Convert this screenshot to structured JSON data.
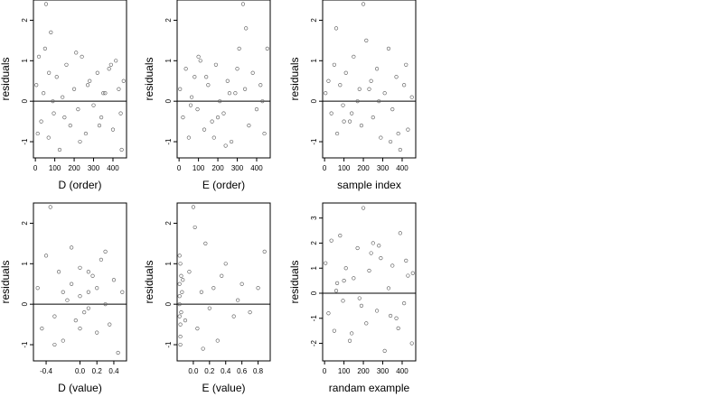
{
  "chart_data": [
    {
      "type": "scatter",
      "xlabel": "D (order)",
      "ylabel": "residuals",
      "xlim": [
        -10,
        470
      ],
      "ylim": [
        -1.4,
        2.5
      ],
      "xticks": [
        0,
        100,
        200,
        300,
        400
      ],
      "xtick_labels": [
        "0",
        "100",
        "200",
        "300",
        "400"
      ],
      "yticks": [
        -1,
        0,
        1,
        2
      ],
      "ytick_labels": [
        "-1",
        "0",
        "1",
        "2"
      ],
      "hline": 0,
      "grid": false,
      "points": {
        "x": [
          5,
          18,
          30,
          42,
          55,
          68,
          80,
          95,
          110,
          125,
          140,
          160,
          180,
          200,
          220,
          240,
          260,
          280,
          300,
          320,
          340,
          360,
          380,
          400,
          415,
          430,
          445,
          455,
          12,
          50,
          90,
          150,
          210,
          270,
          330,
          390,
          440,
          70,
          230,
          350
        ],
        "y": [
          0.4,
          1.1,
          -0.5,
          0.2,
          2.4,
          -0.9,
          1.7,
          -0.3,
          0.6,
          -1.2,
          0.1,
          0.9,
          -0.6,
          0.3,
          -0.2,
          1.1,
          -0.8,
          0.5,
          -0.1,
          0.7,
          -0.4,
          0.2,
          0.8,
          -0.7,
          1.0,
          0.3,
          -1.2,
          0.5,
          -0.8,
          1.3,
          0.0,
          -0.4,
          1.2,
          0.4,
          -0.6,
          0.9,
          -0.3,
          0.7,
          -1.0,
          0.2
        ]
      }
    },
    {
      "type": "scatter",
      "xlabel": "E (order)",
      "ylabel": "residuals",
      "xlim": [
        -10,
        470
      ],
      "ylim": [
        -1.4,
        2.5
      ],
      "xticks": [
        0,
        100,
        200,
        300,
        400
      ],
      "xtick_labels": [
        "0",
        "100",
        "200",
        "300",
        "400"
      ],
      "yticks": [
        -1,
        0,
        1,
        2
      ],
      "ytick_labels": [
        "-1",
        "0",
        "1",
        "2"
      ],
      "hline": 0,
      "grid": false,
      "points": {
        "x": [
          5,
          20,
          35,
          50,
          65,
          80,
          95,
          110,
          130,
          150,
          170,
          190,
          210,
          230,
          250,
          270,
          290,
          310,
          330,
          345,
          360,
          380,
          400,
          420,
          440,
          455,
          60,
          140,
          240,
          340,
          430,
          100,
          200,
          300,
          260,
          180
        ],
        "y": [
          0.3,
          -0.4,
          0.8,
          -0.9,
          0.1,
          0.6,
          -0.2,
          1.0,
          -0.7,
          0.4,
          -0.5,
          0.9,
          0.0,
          -0.3,
          0.5,
          -1.0,
          0.2,
          1.3,
          2.4,
          1.8,
          -0.6,
          0.7,
          -0.2,
          0.4,
          -0.8,
          1.3,
          -0.1,
          0.6,
          -1.1,
          0.3,
          0.0,
          1.1,
          -0.4,
          0.8,
          0.2,
          -0.9
        ]
      }
    },
    {
      "type": "scatter",
      "xlabel": "sample index",
      "ylabel": "residuals",
      "xlim": [
        -10,
        470
      ],
      "ylim": [
        -1.4,
        2.5
      ],
      "xticks": [
        0,
        100,
        200,
        300,
        400
      ],
      "xtick_labels": [
        "0",
        "100",
        "200",
        "300",
        "400"
      ],
      "yticks": [
        -1,
        0,
        1,
        2
      ],
      "ytick_labels": [
        "-1",
        "0",
        "1",
        "2"
      ],
      "hline": 0,
      "grid": false,
      "points": {
        "x": [
          5,
          20,
          35,
          50,
          65,
          80,
          95,
          110,
          130,
          150,
          170,
          190,
          200,
          215,
          230,
          250,
          270,
          290,
          310,
          330,
          350,
          370,
          390,
          410,
          430,
          450,
          60,
          140,
          240,
          340,
          420,
          100,
          180,
          280,
          380
        ],
        "y": [
          0.2,
          0.5,
          -0.3,
          0.9,
          -0.8,
          0.4,
          -0.1,
          0.7,
          -0.5,
          1.1,
          0.0,
          -0.6,
          2.4,
          1.5,
          0.3,
          -0.4,
          0.8,
          -0.9,
          0.2,
          1.3,
          -0.2,
          0.6,
          -1.2,
          0.4,
          -0.7,
          0.1,
          1.8,
          -0.3,
          0.5,
          -1.0,
          0.9,
          -0.5,
          0.3,
          0.0,
          -0.8
        ]
      }
    },
    {
      "type": "scatter",
      "xlabel": "D (value)",
      "ylabel": "residuals",
      "xlim": [
        -0.55,
        0.55
      ],
      "ylim": [
        -1.4,
        2.5
      ],
      "xticks": [
        -0.4,
        0.0,
        0.2,
        0.4
      ],
      "xtick_labels": [
        "-0.4",
        "0.0",
        "0.2",
        "0.4"
      ],
      "yticks": [
        -1,
        0,
        1,
        2
      ],
      "ytick_labels": [
        "-1",
        "0",
        "1",
        "2"
      ],
      "hline": 0,
      "grid": false,
      "points": {
        "x": [
          -0.5,
          -0.45,
          -0.4,
          -0.35,
          -0.3,
          -0.25,
          -0.2,
          -0.15,
          -0.1,
          -0.05,
          0.0,
          0.05,
          0.1,
          0.15,
          0.2,
          0.25,
          0.3,
          0.35,
          0.4,
          0.45,
          0.5,
          -0.3,
          -0.1,
          0.0,
          0.1,
          0.2,
          0.1,
          0.0,
          -0.2,
          0.3
        ],
        "y": [
          0.4,
          -0.6,
          1.2,
          2.4,
          -0.3,
          0.8,
          -0.9,
          0.1,
          0.5,
          -0.4,
          0.9,
          -0.2,
          0.3,
          0.7,
          -0.7,
          1.1,
          0.0,
          -0.5,
          0.6,
          -1.2,
          0.3,
          -1.0,
          1.4,
          0.2,
          -0.1,
          0.4,
          0.8,
          -0.6,
          0.3,
          1.3
        ]
      }
    },
    {
      "type": "scatter",
      "xlabel": "E (value)",
      "ylabel": "residuals",
      "xlim": [
        -0.2,
        0.95
      ],
      "ylim": [
        -1.4,
        2.5
      ],
      "xticks": [
        0.0,
        0.2,
        0.4,
        0.6,
        0.8
      ],
      "xtick_labels": [
        "0.0",
        "0.2",
        "0.4",
        "0.6",
        "0.8"
      ],
      "yticks": [
        -1,
        0,
        1,
        2
      ],
      "ytick_labels": [
        "-1",
        "0",
        "1",
        "2"
      ],
      "hline": 0,
      "grid": false,
      "points": {
        "x": [
          -0.17,
          -0.17,
          -0.16,
          -0.16,
          -0.17,
          -0.15,
          -0.16,
          -0.17,
          -0.14,
          -0.16,
          -0.17,
          -0.15,
          -0.13,
          -0.1,
          -0.05,
          0.0,
          0.05,
          0.1,
          0.15,
          0.2,
          0.25,
          0.3,
          0.35,
          0.4,
          0.5,
          0.55,
          0.6,
          0.7,
          0.8,
          0.88,
          0.02,
          0.12
        ],
        "y": [
          0.5,
          -0.3,
          1.0,
          -0.8,
          0.2,
          0.7,
          -0.5,
          0.0,
          0.3,
          -1.0,
          1.2,
          -0.2,
          0.6,
          -0.4,
          0.8,
          2.4,
          -0.6,
          0.3,
          1.5,
          -0.1,
          0.4,
          -0.9,
          0.7,
          1.0,
          -0.3,
          0.1,
          0.5,
          -0.2,
          0.4,
          1.3,
          1.9,
          -1.1
        ]
      }
    },
    {
      "type": "scatter",
      "xlabel": "randam example",
      "ylabel": "residuals",
      "xlim": [
        -10,
        470
      ],
      "ylim": [
        -2.7,
        3.6
      ],
      "xticks": [
        0,
        100,
        200,
        300,
        400
      ],
      "xtick_labels": [
        "0",
        "100",
        "200",
        "300",
        "400"
      ],
      "yticks": [
        -2,
        -1,
        0,
        1,
        2,
        3
      ],
      "ytick_labels": [
        "-2",
        "-1",
        "0",
        "1",
        "2",
        "3"
      ],
      "hline": 0,
      "grid": false,
      "points": {
        "x": [
          5,
          20,
          35,
          50,
          65,
          80,
          95,
          110,
          130,
          150,
          170,
          190,
          200,
          215,
          230,
          250,
          270,
          290,
          310,
          330,
          350,
          370,
          390,
          410,
          430,
          450,
          60,
          140,
          240,
          340,
          420,
          100,
          180,
          280,
          380,
          455
        ],
        "y": [
          1.2,
          -0.8,
          2.1,
          -1.5,
          0.4,
          2.3,
          -0.3,
          1.0,
          -1.9,
          0.6,
          1.8,
          -0.5,
          3.4,
          -1.2,
          0.9,
          2.0,
          -0.7,
          1.4,
          -2.3,
          0.2,
          1.1,
          -1.0,
          2.4,
          -0.4,
          0.7,
          -2.0,
          0.1,
          -1.6,
          1.6,
          -0.9,
          1.3,
          0.5,
          -0.2,
          1.9,
          -1.4,
          0.8
        ]
      }
    }
  ]
}
